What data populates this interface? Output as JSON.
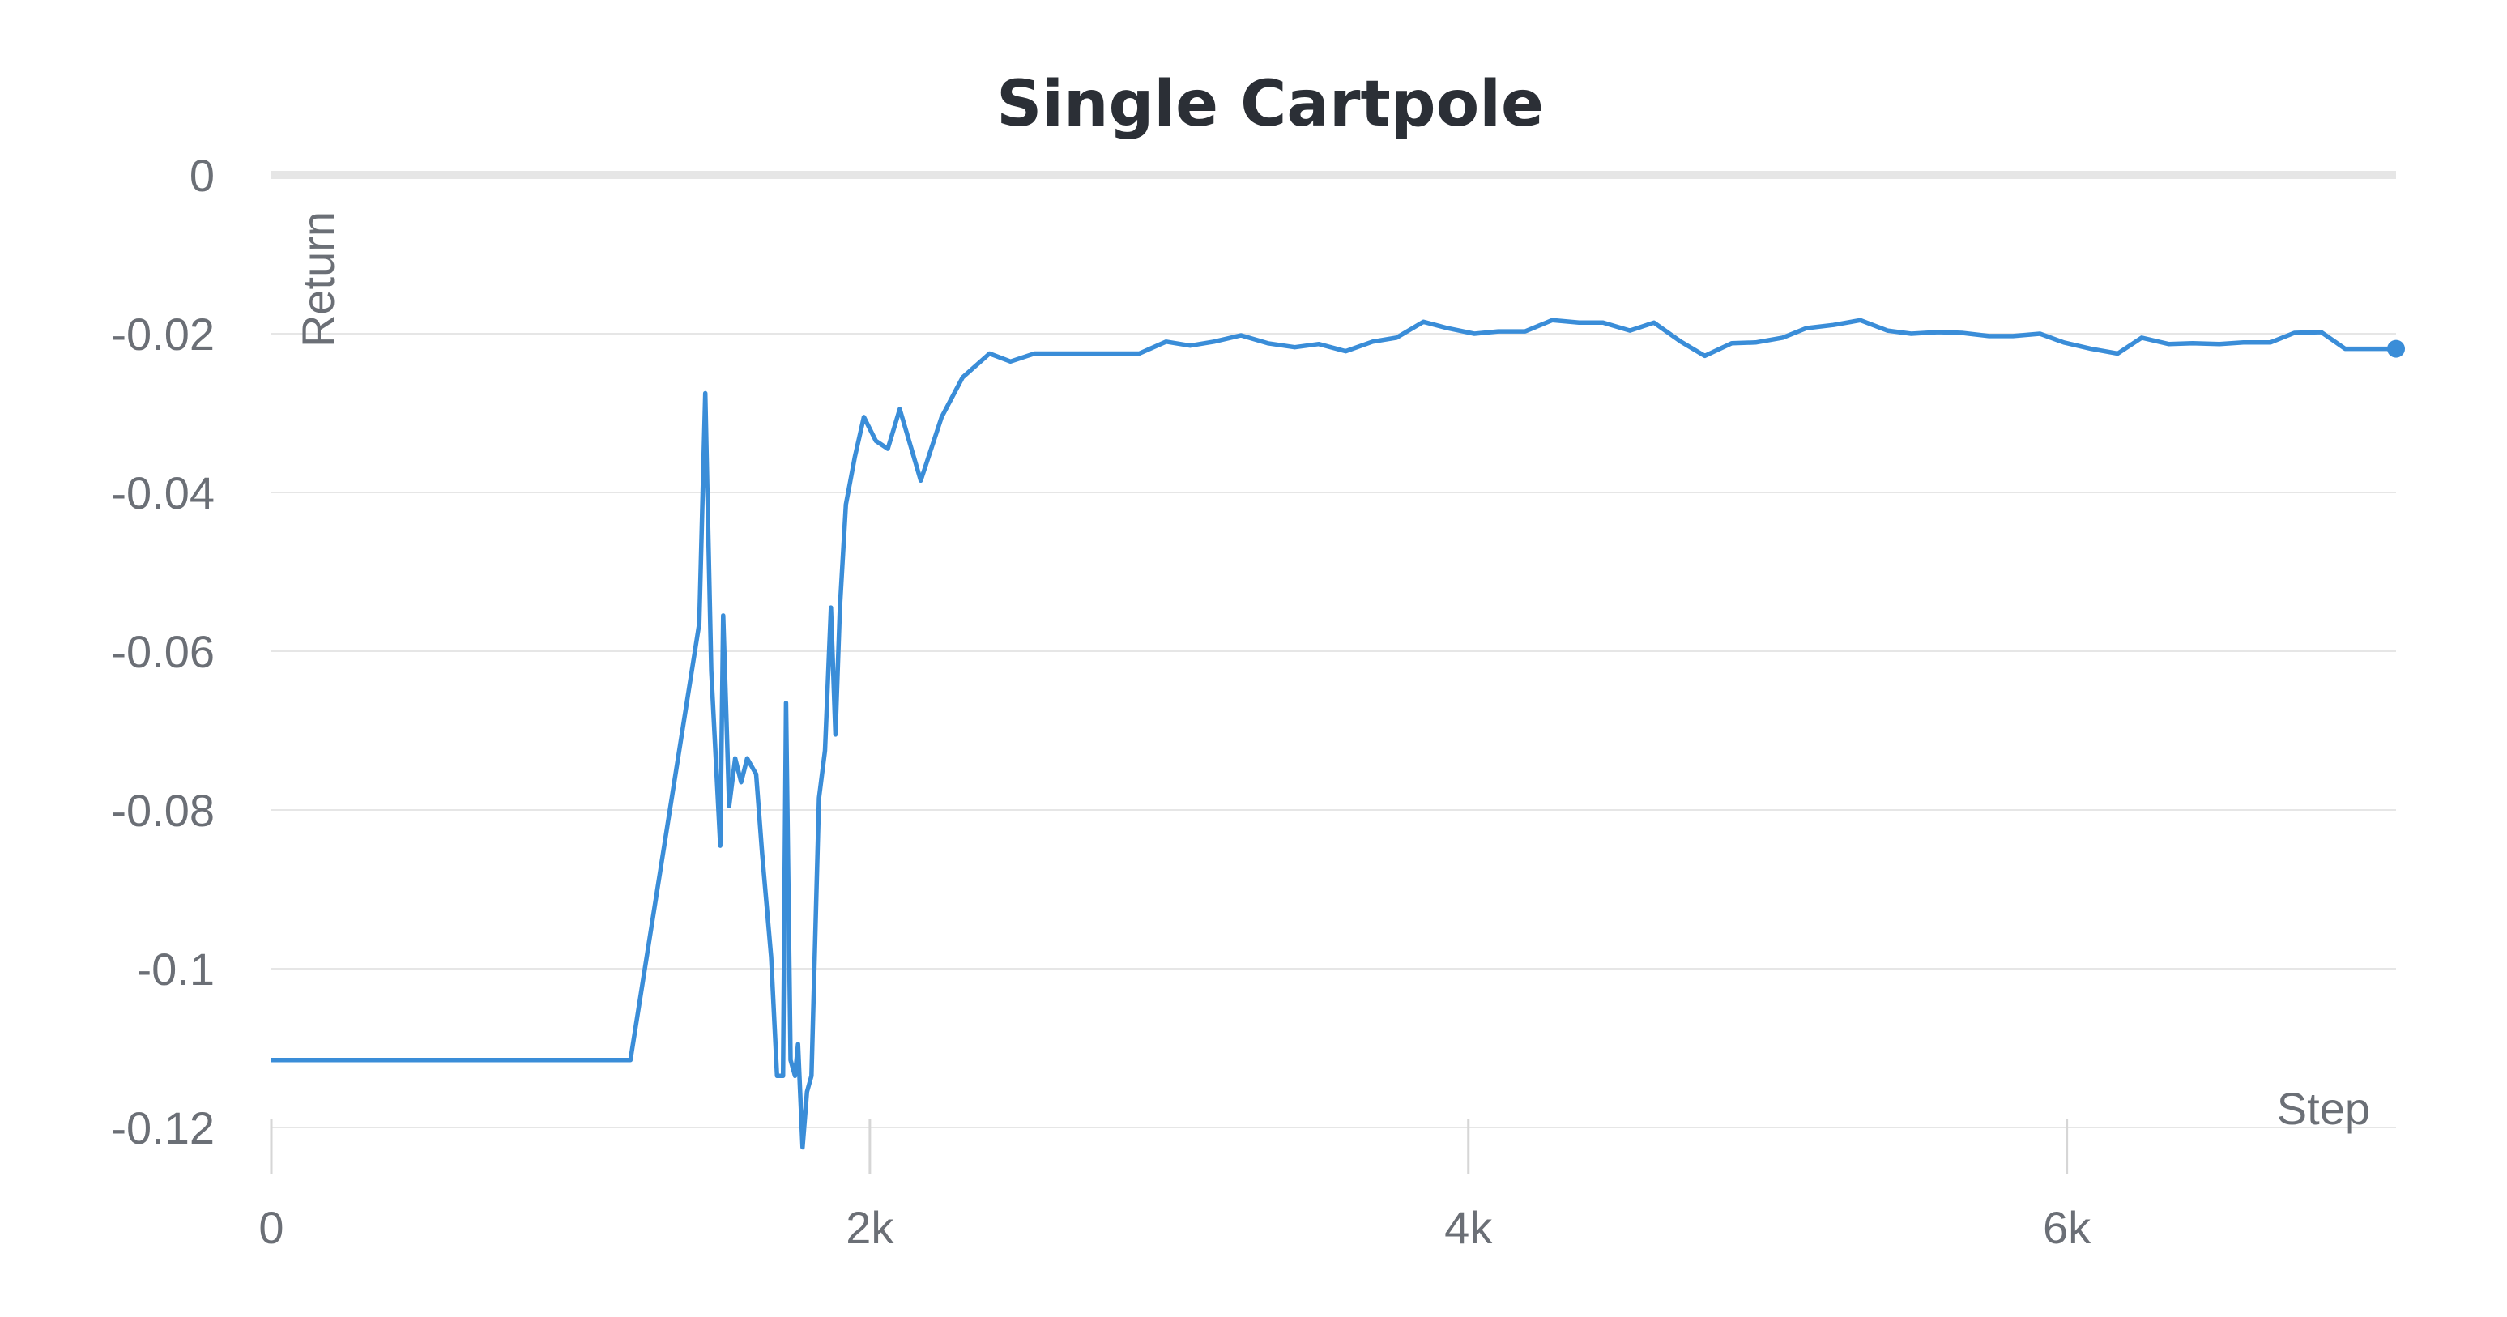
{
  "chart_data": {
    "type": "line",
    "title": "Single Cartpole",
    "xlabel": "Step",
    "ylabel": "Return",
    "xlim": [
      0,
      7100
    ],
    "ylim": [
      -0.12,
      0
    ],
    "x_ticks": [
      {
        "value": 0,
        "label": "0"
      },
      {
        "value": 2000,
        "label": "2k"
      },
      {
        "value": 4000,
        "label": "4k"
      },
      {
        "value": 6000,
        "label": "6k"
      }
    ],
    "y_ticks": [
      {
        "value": 0,
        "label": "0"
      },
      {
        "value": -0.02,
        "label": "-0.02"
      },
      {
        "value": -0.04,
        "label": "-0.04"
      },
      {
        "value": -0.06,
        "label": "-0.06"
      },
      {
        "value": -0.08,
        "label": "-0.08"
      },
      {
        "value": -0.1,
        "label": "-0.1"
      },
      {
        "value": -0.12,
        "label": "-0.12"
      }
    ],
    "grid": true,
    "legend": "none",
    "color": "#3a8dd8",
    "series": [
      {
        "x": [
          0,
          1200,
          1430,
          1450,
          1470,
          1500,
          1510,
          1530,
          1550,
          1570,
          1590,
          1620,
          1640,
          1670,
          1690,
          1710,
          1720,
          1735,
          1750,
          1760,
          1775,
          1790,
          1805,
          1830,
          1850,
          1870,
          1885,
          1900,
          1920,
          1950,
          1980,
          2020,
          2060,
          2100,
          2170,
          2240,
          2310,
          2400,
          2470,
          2550,
          2640,
          2730,
          2810,
          2900,
          2990,
          3070,
          3150,
          3240,
          3330,
          3420,
          3500,
          3590,
          3680,
          3760,
          3850,
          3930,
          4020,
          4100,
          4190,
          4280,
          4370,
          4450,
          4540,
          4620,
          4710,
          4790,
          4880,
          4960,
          5050,
          5130,
          5220,
          5310,
          5400,
          5480,
          5570,
          5650,
          5740,
          5820,
          5910,
          5990,
          6080,
          6170,
          6250,
          6340,
          6420,
          6510,
          6590,
          6680,
          6760,
          6850,
          6930,
          7020,
          7100
        ],
        "y": [
          -0.1115,
          -0.1115,
          -0.0565,
          -0.0275,
          -0.0625,
          -0.0845,
          -0.0555,
          -0.0795,
          -0.0735,
          -0.0765,
          -0.0735,
          -0.0755,
          -0.0855,
          -0.0985,
          -0.1135,
          -0.1135,
          -0.0665,
          -0.1115,
          -0.1135,
          -0.1095,
          -0.1225,
          -0.1155,
          -0.1135,
          -0.0785,
          -0.0725,
          -0.0545,
          -0.0705,
          -0.0545,
          -0.0415,
          -0.0355,
          -0.0305,
          -0.0335,
          -0.0345,
          -0.0295,
          -0.0385,
          -0.0305,
          -0.0255,
          -0.0225,
          -0.0235,
          -0.0225,
          -0.0225,
          -0.0225,
          -0.0225,
          -0.0225,
          -0.021,
          -0.0215,
          -0.021,
          -0.0202,
          -0.0212,
          -0.0217,
          -0.0213,
          -0.0222,
          -0.021,
          -0.0205,
          -0.0185,
          -0.0193,
          -0.02,
          -0.0197,
          -0.0197,
          -0.0183,
          -0.0186,
          -0.0186,
          -0.0196,
          -0.0186,
          -0.021,
          -0.0228,
          -0.0212,
          -0.0211,
          -0.0205,
          -0.0193,
          -0.0189,
          -0.0183,
          -0.0196,
          -0.02,
          -0.0198,
          -0.0199,
          -0.0203,
          -0.0203,
          -0.02,
          -0.0211,
          -0.0219,
          -0.0225,
          -0.0205,
          -0.0213,
          -0.0212,
          -0.0213,
          -0.0211,
          -0.0211,
          -0.0199,
          -0.0198,
          -0.0219,
          -0.0219,
          -0.0219
        ]
      }
    ]
  }
}
